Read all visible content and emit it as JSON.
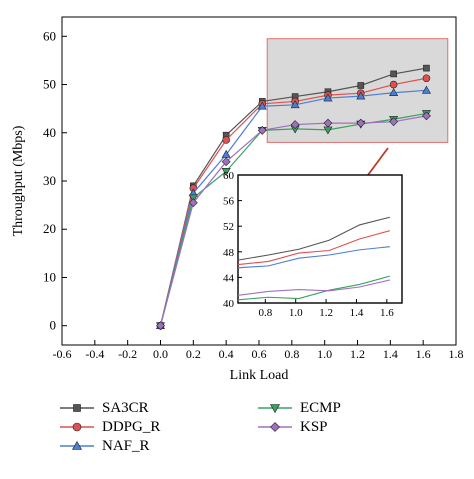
{
  "chart_data": [
    {
      "type": "line",
      "title": "",
      "xlabel": "Link Load",
      "ylabel": "Throughput (Mbps)",
      "xlim": [
        -0.6,
        1.8
      ],
      "ylim": [
        -4,
        64
      ],
      "xticks": [
        -0.6,
        -0.4,
        -0.2,
        0.0,
        0.2,
        0.4,
        0.6,
        0.8,
        1.0,
        1.2,
        1.4,
        1.6,
        1.8
      ],
      "xtick_labels": [
        "-0.6",
        "-0.4",
        "-0.2",
        "0.0",
        "0.2",
        "0.4",
        "0.6",
        "0.8",
        "1.0",
        "1.2",
        "1.4",
        "1.6",
        "1.8"
      ],
      "yticks": [
        0,
        10,
        20,
        30,
        40,
        50,
        60
      ],
      "ytick_labels": [
        "0",
        "10",
        "20",
        "30",
        "40",
        "50",
        "60"
      ],
      "grid": false,
      "legend_position": "bottom",
      "highlight_region": {
        "x": [
          0.65,
          1.75
        ],
        "y": [
          38,
          59.5
        ],
        "fill": "#d9d9d9",
        "stroke": "#e07070"
      },
      "series": [
        {
          "name": "SA3CR",
          "color": "#555555",
          "marker": "square",
          "x": [
            0.0,
            0.2,
            0.4,
            0.62,
            0.82,
            1.02,
            1.22,
            1.42,
            1.62
          ],
          "y": [
            0,
            29,
            39.5,
            46.5,
            47.5,
            48.5,
            49.8,
            52.2,
            53.4
          ]
        },
        {
          "name": "DDPG_R",
          "color": "#e05050",
          "marker": "circle",
          "x": [
            0.0,
            0.2,
            0.4,
            0.62,
            0.82,
            1.02,
            1.22,
            1.42,
            1.62
          ],
          "y": [
            0,
            28.5,
            38.5,
            46,
            46.5,
            47.8,
            48.2,
            50,
            51.3
          ]
        },
        {
          "name": "NAF_R",
          "color": "#4a7fd4",
          "marker": "triangle-up",
          "x": [
            0.0,
            0.2,
            0.4,
            0.62,
            0.82,
            1.02,
            1.22,
            1.42,
            1.62
          ],
          "y": [
            0,
            27.5,
            35.5,
            45.5,
            45.8,
            47.2,
            47.6,
            48.3,
            48.8
          ]
        },
        {
          "name": "ECMP",
          "color": "#3aa060",
          "marker": "triangle-down",
          "x": [
            0.0,
            0.2,
            0.4,
            0.62,
            0.82,
            1.02,
            1.22,
            1.42,
            1.62
          ],
          "y": [
            0,
            26.5,
            32,
            40.5,
            40.8,
            40.6,
            41.8,
            42.8,
            44.0
          ]
        },
        {
          "name": "KSP",
          "color": "#a070c0",
          "marker": "diamond",
          "x": [
            0.0,
            0.2,
            0.4,
            0.62,
            0.82,
            1.02,
            1.22,
            1.42,
            1.62
          ],
          "y": [
            0,
            25.5,
            34,
            40.5,
            41.7,
            42,
            42,
            42.3,
            43.5
          ]
        }
      ]
    },
    {
      "type": "line",
      "title": "",
      "xlabel": "",
      "ylabel": "",
      "xlim": [
        0.62,
        1.7
      ],
      "ylim": [
        40,
        60
      ],
      "xticks": [
        0.8,
        1.0,
        1.2,
        1.4,
        1.6
      ],
      "xtick_labels": [
        "0.8",
        "1.0",
        "1.2",
        "1.4",
        "1.6"
      ],
      "yticks": [
        40,
        44,
        48,
        52,
        56,
        60
      ],
      "ytick_labels": [
        "40",
        "44",
        "48",
        "52",
        "56",
        "60"
      ],
      "grid": false,
      "series": [
        {
          "color": "#555555",
          "x": [
            0.62,
            0.82,
            1.02,
            1.22,
            1.42,
            1.62
          ],
          "y": [
            46.7,
            47.5,
            48.4,
            49.8,
            52.2,
            53.4
          ]
        },
        {
          "color": "#e05050",
          "x": [
            0.62,
            0.82,
            1.02,
            1.22,
            1.42,
            1.62
          ],
          "y": [
            46.0,
            46.5,
            47.8,
            48.2,
            50.0,
            51.3
          ]
        },
        {
          "color": "#4a7fd4",
          "x": [
            0.62,
            0.82,
            1.02,
            1.22,
            1.42,
            1.62
          ],
          "y": [
            45.5,
            45.8,
            47.0,
            47.5,
            48.3,
            48.8
          ]
        },
        {
          "color": "#3aa060",
          "x": [
            0.62,
            0.82,
            1.02,
            1.22,
            1.42,
            1.62
          ],
          "y": [
            40.5,
            40.9,
            40.7,
            42.0,
            42.9,
            44.2
          ]
        },
        {
          "color": "#a070c0",
          "x": [
            0.62,
            0.82,
            1.02,
            1.22,
            1.42,
            1.62
          ],
          "y": [
            41.2,
            41.8,
            42.1,
            41.9,
            42.5,
            43.6
          ]
        }
      ]
    }
  ]
}
